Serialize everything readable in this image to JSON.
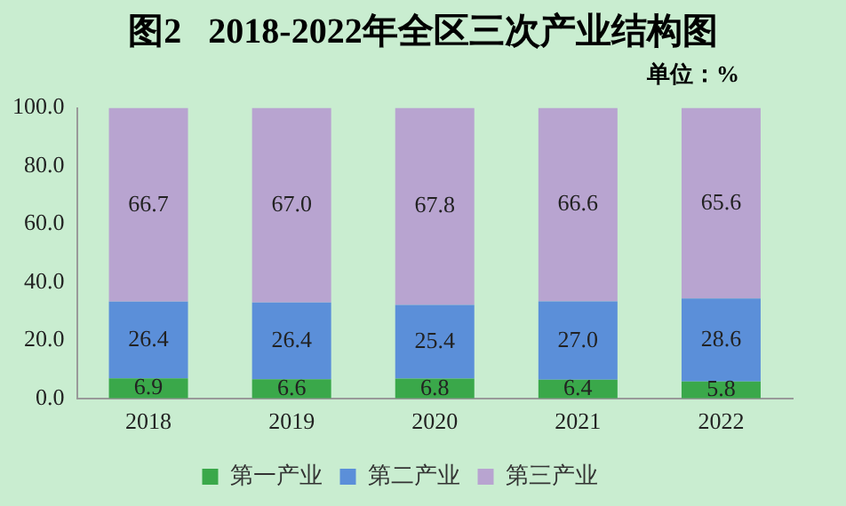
{
  "chart_data": {
    "type": "bar",
    "title": "图2   2018-2022年全区三次产业结构图",
    "subtitle": "单位：%",
    "categories": [
      "2018",
      "2019",
      "2020",
      "2021",
      "2022"
    ],
    "series": [
      {
        "name": "第一产业",
        "color": "#3aa84a",
        "values": [
          6.9,
          6.6,
          6.8,
          6.4,
          5.8
        ],
        "value_labels": [
          "6.9",
          "6.6",
          "6.8",
          "6.4",
          "5.8"
        ]
      },
      {
        "name": "第二产业",
        "color": "#5b8fd9",
        "values": [
          26.4,
          26.4,
          25.4,
          27.0,
          28.6
        ],
        "value_labels": [
          "26.4",
          "26.4",
          "25.4",
          "27.0",
          "28.6"
        ]
      },
      {
        "name": "第三产业",
        "color": "#b8a4d0",
        "values": [
          66.7,
          67.0,
          67.8,
          66.6,
          65.6
        ],
        "value_labels": [
          "66.7",
          "67.0",
          "67.8",
          "66.6",
          "65.6"
        ]
      }
    ],
    "stacked": true,
    "grid": false,
    "legend": "bottom",
    "ylim": [
      0,
      100
    ],
    "yticks": [
      {
        "value": 0,
        "label": "0.0"
      },
      {
        "value": 20,
        "label": "20.0"
      },
      {
        "value": 40,
        "label": "40.0"
      },
      {
        "value": 60,
        "label": "60.0"
      },
      {
        "value": 80,
        "label": "80.0"
      },
      {
        "value": 100,
        "label": "100.0"
      }
    ]
  }
}
